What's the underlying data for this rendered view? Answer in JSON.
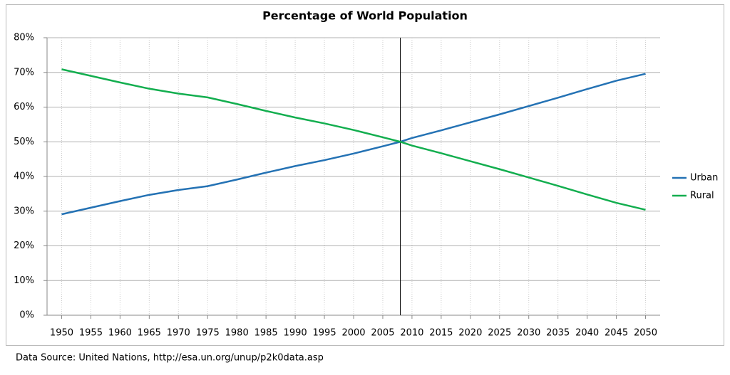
{
  "chart_data": {
    "type": "line",
    "title": "Percentage of World Population",
    "source": "Data Source: United Nations, http://esa.un.org/unup/p2k0data.asp",
    "x": [
      1950,
      1955,
      1960,
      1965,
      1970,
      1975,
      1980,
      1985,
      1990,
      1995,
      2000,
      2005,
      2008,
      2010,
      2015,
      2020,
      2025,
      2030,
      2035,
      2040,
      2045,
      2050
    ],
    "series": [
      {
        "name": "Urban",
        "color": "#2472b4",
        "values": [
          29.1,
          31.0,
          32.9,
          34.7,
          36.1,
          37.2,
          39.1,
          41.1,
          43.0,
          44.7,
          46.6,
          48.7,
          50.0,
          51.1,
          53.3,
          55.6,
          57.9,
          60.3,
          62.7,
          65.2,
          67.6,
          69.6
        ]
      },
      {
        "name": "Rural",
        "color": "#13ae4f",
        "values": [
          70.9,
          69.0,
          67.1,
          65.3,
          63.9,
          62.8,
          60.9,
          58.9,
          57.0,
          55.3,
          53.4,
          51.3,
          50.0,
          48.9,
          46.7,
          44.4,
          42.1,
          39.7,
          37.3,
          34.8,
          32.4,
          30.4
        ]
      }
    ],
    "marker_line": 2008,
    "xlim": [
      1947.5,
      2052.5
    ],
    "xticks": [
      1950,
      1955,
      1960,
      1965,
      1970,
      1975,
      1980,
      1985,
      1990,
      1995,
      2000,
      2005,
      2010,
      2015,
      2020,
      2025,
      2030,
      2035,
      2040,
      2045,
      2050
    ],
    "ylim": [
      0,
      80
    ],
    "yticks": [
      {
        "value": 0,
        "label": "0%"
      },
      {
        "value": 10,
        "label": "10%"
      },
      {
        "value": 20,
        "label": "20%"
      },
      {
        "value": 30,
        "label": "30%"
      },
      {
        "value": 40,
        "label": "40%"
      },
      {
        "value": 50,
        "label": "50%"
      },
      {
        "value": 60,
        "label": "60%"
      },
      {
        "value": 70,
        "label": "70%"
      },
      {
        "value": 80,
        "label": "80%"
      }
    ],
    "grid": true,
    "legend": "right"
  }
}
